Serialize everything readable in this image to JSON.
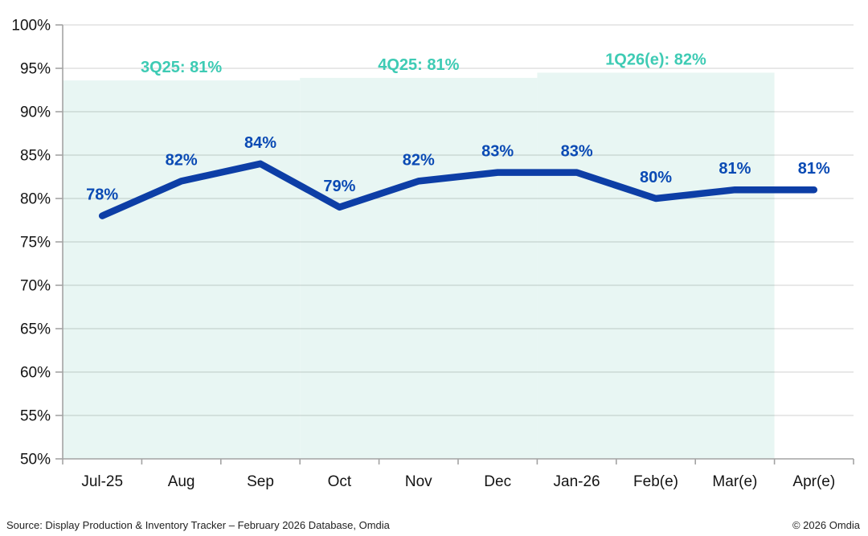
{
  "chart_data": {
    "type": "line",
    "title": "",
    "categories": [
      "Jul-25",
      "Aug",
      "Sep",
      "Oct",
      "Nov",
      "Dec",
      "Jan-26",
      "Feb(e)",
      "Mar(e)",
      "Apr(e)"
    ],
    "values": [
      78,
      82,
      84,
      79,
      82,
      83,
      83,
      80,
      81,
      81
    ],
    "unit": "%",
    "ylim": [
      50,
      100
    ],
    "ytick_step": 5,
    "grid": true,
    "legend": "none",
    "line_color": "#0d3ea6",
    "point_label_color": "#0a4ab4",
    "axis_label_color": "#141414",
    "band_color": "#e8f6f3",
    "annotation_color": "#3ecbb4",
    "quarter_bands": [
      {
        "label": "3Q25: 81%",
        "start_cat": 0,
        "end_cat": 2,
        "top_value": 93.6
      },
      {
        "label": "4Q25: 81%",
        "start_cat": 3,
        "end_cat": 5,
        "top_value": 93.9
      },
      {
        "label": "1Q26(e): 82%",
        "start_cat": 6,
        "end_cat": 8,
        "top_value": 94.5
      }
    ]
  },
  "footer": {
    "source": "Source: Display Production & Inventory Tracker – February 2026 Database, Omdia",
    "copyright": "© 2026 Omdia"
  }
}
